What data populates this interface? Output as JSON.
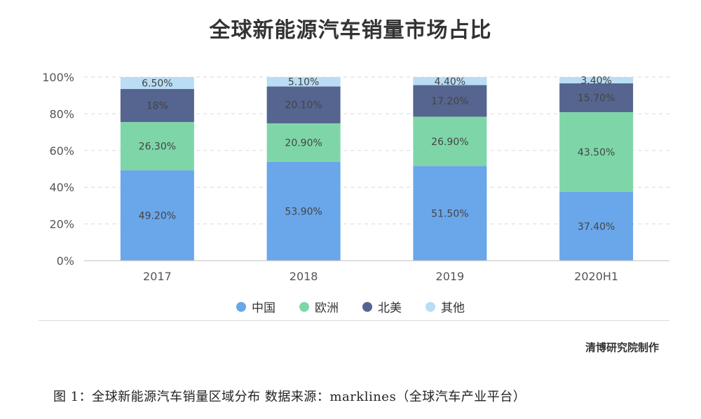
{
  "chart_title": "全球新能源汽车销量市场占比",
  "credit": "清博研究院制作",
  "caption": "图 1：全球新能源汽车销量区域分布  数据来源：marklines（全球汽车产业平台）",
  "chart_data": {
    "type": "bar",
    "stacked": true,
    "title": "全球新能源汽车销量市场占比",
    "categories": [
      "2017",
      "2018",
      "2019",
      "2020H1"
    ],
    "y_ticks": [
      "0%",
      "20%",
      "40%",
      "60%",
      "80%",
      "100%"
    ],
    "ylim": [
      0,
      100
    ],
    "grid": true,
    "legend_position": "bottom",
    "series": [
      {
        "name": "中国",
        "color": "#6aa6ea",
        "values": [
          49.2,
          53.9,
          51.5,
          37.4
        ],
        "labels": [
          "49.20%",
          "53.90%",
          "51.50%",
          "37.40%"
        ]
      },
      {
        "name": "欧洲",
        "color": "#7ed6a8",
        "values": [
          26.3,
          20.9,
          26.9,
          43.5
        ],
        "labels": [
          "26.30%",
          "20.90%",
          "26.90%",
          "43.50%"
        ]
      },
      {
        "name": "北美",
        "color": "#56658f",
        "values": [
          18,
          20.1,
          17.2,
          15.7
        ],
        "labels": [
          "18%",
          "20.10%",
          "17.20%",
          "15.70%"
        ]
      },
      {
        "name": "其他",
        "color": "#b8ddf5",
        "values": [
          6.5,
          5.1,
          4.4,
          3.4
        ],
        "labels": [
          "6.50%",
          "5.10%",
          "4.40%",
          "3.40%"
        ]
      }
    ]
  }
}
